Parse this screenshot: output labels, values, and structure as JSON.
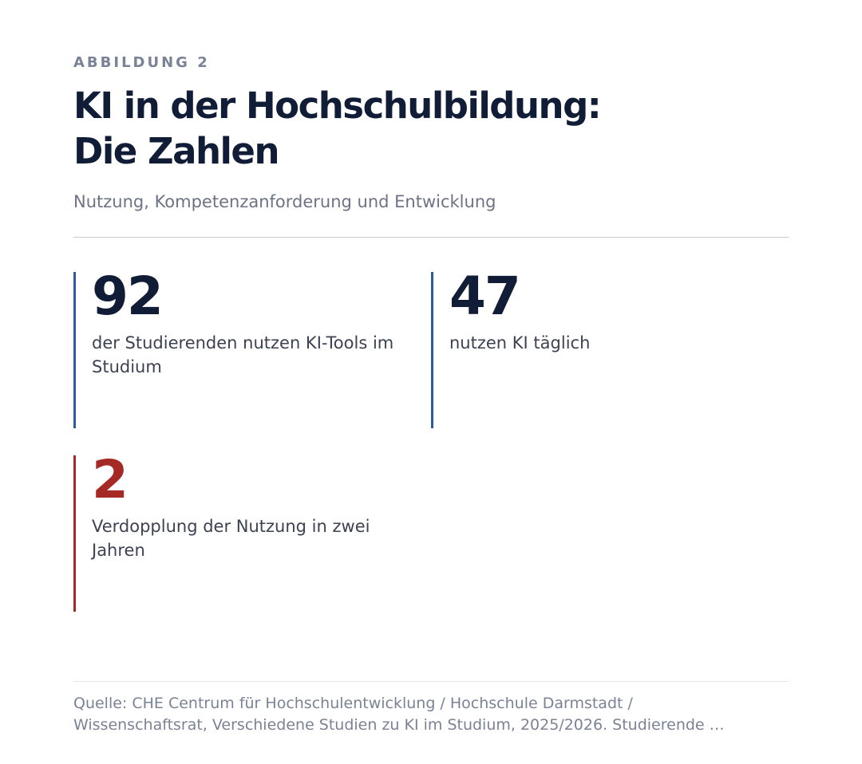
{
  "header": {
    "eyebrow": "ABBILDUNG 2",
    "title_line_1": "KI in der Hochschulbildung:",
    "title_line_2": "Die Zahlen",
    "subtitle": "Nutzung, Kompetenzanforderung und Entwicklung"
  },
  "stats": [
    {
      "value": "92",
      "label": "der Studierenden nutzen KI-Tools im Studium",
      "accent": "#2e5aa3"
    },
    {
      "value": "47",
      "label": "nutzen KI täglich",
      "accent": "#2e5aa3"
    },
    {
      "value": "2",
      "label": "Verdopplung der Nutzung in zwei Jahren",
      "accent": "#a52a25"
    }
  ],
  "footer": {
    "source_line_1": "Quelle: CHE Centrum für Hochschulentwicklung / Hochschule Darmstadt /",
    "source_line_2": "Wissenschaftsrat, Verschiedene Studien zu KI im Studium, 2025/2026. Studierende …"
  },
  "colors": {
    "text_primary": "#111c36",
    "text_muted": "#7a8395",
    "accent_blue": "#2e5aa3",
    "accent_red": "#a52a25"
  }
}
